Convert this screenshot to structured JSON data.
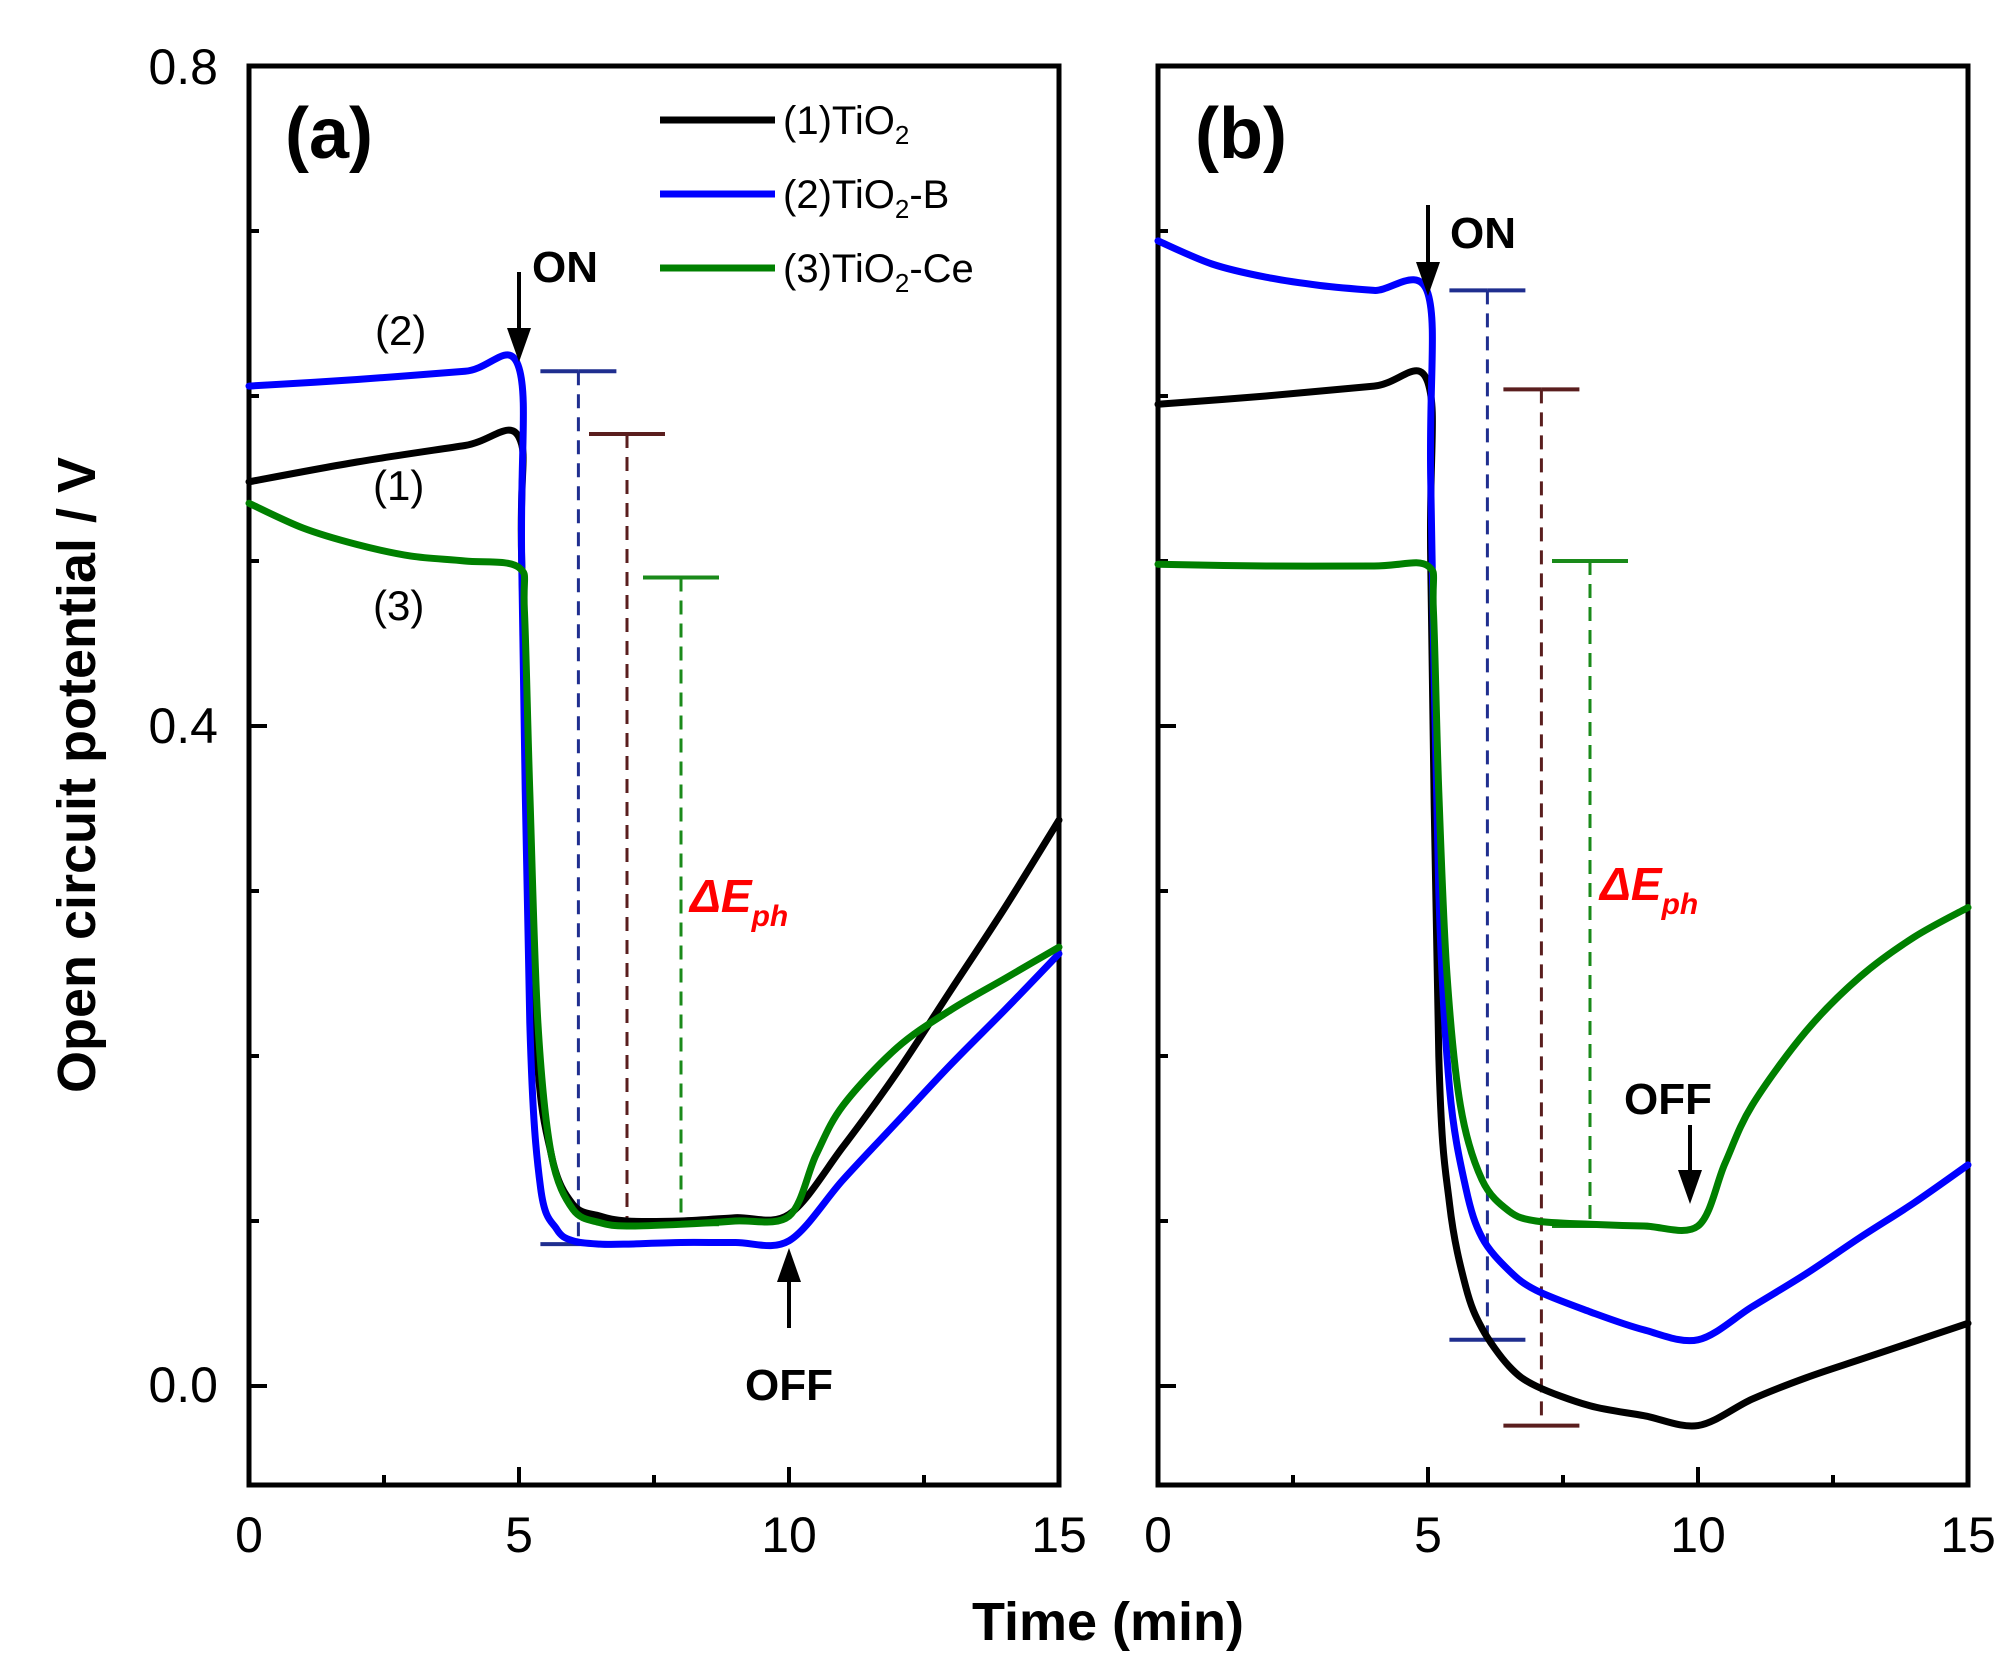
{
  "figure": {
    "ylabel": "Open circuit potential / V",
    "xlabel": "Time (min)"
  },
  "colors": {
    "tio2": "#000000",
    "tio2_b": "#0000ff",
    "tio2_ce": "#008000",
    "bar_brown": "#5a1e1e",
    "bar_blue": "#1f2e8f",
    "bar_green": "#1a8a1a",
    "delta_e": "#ff0000"
  },
  "legend": {
    "entries": [
      {
        "prefix": "(1)TiO",
        "sub": "2",
        "suffix": "",
        "color": "#000000"
      },
      {
        "prefix": "(2)TiO",
        "sub": "2",
        "suffix": "-B",
        "color": "#0000ff"
      },
      {
        "prefix": "(3)TiO",
        "sub": "2",
        "suffix": "-Ce",
        "color": "#008000"
      }
    ]
  },
  "panel_a": {
    "label": "(a)",
    "on_label": "ON",
    "off_label": "OFF",
    "curve_labels": {
      "c1": "(1)",
      "c2": "(2)",
      "c3": "(3)"
    },
    "delta_e": {
      "main": "ΔE",
      "sub": "ph"
    }
  },
  "panel_b": {
    "label": "(b)",
    "on_label": "ON",
    "off_label": "OFF",
    "delta_e": {
      "main": "ΔE",
      "sub": "ph"
    }
  },
  "chart_data": [
    {
      "type": "line",
      "panel": "a",
      "xlabel": "Time (min)",
      "ylabel": "Open circuit potential / V",
      "xlim": [
        0,
        15
      ],
      "ylim": [
        -0.06,
        0.8
      ],
      "xticks": [
        0,
        5,
        10,
        15
      ],
      "xtick_labels": [
        "0",
        "5",
        "10",
        "15"
      ],
      "yticks": [
        0.0,
        0.4,
        0.8
      ],
      "ytick_labels": [
        "0.0",
        "0.4",
        "0.8"
      ],
      "series": [
        {
          "name": "(1)TiO2",
          "key": "tio2",
          "x": [
            0,
            2,
            4,
            5,
            5.05,
            5.3,
            5.6,
            6.0,
            6.5,
            7,
            8,
            9,
            10,
            11,
            12,
            13,
            14,
            15
          ],
          "y": [
            0.548,
            0.56,
            0.57,
            0.575,
            0.5,
            0.22,
            0.14,
            0.11,
            0.103,
            0.1,
            0.1,
            0.102,
            0.104,
            0.145,
            0.19,
            0.24,
            0.29,
            0.343
          ]
        },
        {
          "name": "(2)TiO2-B",
          "key": "tio2_b",
          "x": [
            0,
            2,
            4,
            5,
            5.05,
            5.2,
            5.4,
            5.7,
            6.0,
            6.5,
            7,
            8,
            9,
            10,
            11,
            12,
            13,
            14,
            15
          ],
          "y": [
            0.606,
            0.61,
            0.615,
            0.617,
            0.5,
            0.22,
            0.12,
            0.095,
            0.088,
            0.086,
            0.086,
            0.087,
            0.087,
            0.088,
            0.125,
            0.16,
            0.195,
            0.228,
            0.262
          ]
        },
        {
          "name": "(3)TiO2-Ce",
          "key": "tio2_ce",
          "x": [
            0,
            1,
            2,
            3,
            4,
            5,
            5.1,
            5.2,
            5.35,
            5.6,
            6.0,
            6.5,
            7,
            8,
            9,
            10,
            10.5,
            11,
            12,
            13,
            14,
            15
          ],
          "y": [
            0.535,
            0.52,
            0.51,
            0.503,
            0.5,
            0.496,
            0.47,
            0.36,
            0.22,
            0.14,
            0.107,
            0.099,
            0.097,
            0.098,
            0.1,
            0.103,
            0.14,
            0.17,
            0.205,
            0.228,
            0.247,
            0.266
          ]
        }
      ],
      "delta_bars": [
        {
          "key": "bar_blue",
          "x": 6.1,
          "y_top": 0.615,
          "y_bottom": 0.086
        },
        {
          "key": "bar_brown",
          "x": 7.0,
          "y_top": 0.577,
          "y_bottom": 0.1
        },
        {
          "key": "bar_green",
          "x": 8.0,
          "y_top": 0.49,
          "y_bottom": 0.098
        }
      ],
      "annotations": [
        "ON at 5 min (down arrow)",
        "OFF at 10 min (up arrow)",
        "ΔEph"
      ]
    },
    {
      "type": "line",
      "panel": "b",
      "xlabel": "Time (min)",
      "xlim": [
        0,
        15
      ],
      "ylim": [
        -0.06,
        0.8
      ],
      "xticks": [
        0,
        5,
        10,
        15
      ],
      "xtick_labels": [
        "0",
        "5",
        "10",
        "15"
      ],
      "yticks": [
        0.0,
        0.1,
        0.2,
        0.3,
        0.4,
        0.5,
        0.6,
        0.7,
        0.8
      ],
      "series": [
        {
          "name": "(1)TiO2",
          "key": "tio2",
          "x": [
            0,
            2,
            4,
            5,
            5.05,
            5.2,
            5.4,
            5.7,
            6.0,
            6.5,
            7,
            8,
            9,
            10,
            11,
            12,
            13,
            14,
            15
          ],
          "y": [
            0.595,
            0.6,
            0.606,
            0.608,
            0.5,
            0.2,
            0.11,
            0.06,
            0.035,
            0.012,
            0.0,
            -0.012,
            -0.018,
            -0.024,
            -0.008,
            0.005,
            0.016,
            0.027,
            0.038
          ]
        },
        {
          "name": "(2)TiO2-B",
          "key": "tio2_b",
          "x": [
            0,
            1,
            2,
            3,
            4,
            5,
            5.05,
            5.2,
            5.4,
            5.7,
            6.0,
            6.5,
            7,
            8,
            9,
            10,
            11,
            12,
            13,
            14,
            15
          ],
          "y": [
            0.694,
            0.68,
            0.672,
            0.667,
            0.664,
            0.662,
            0.55,
            0.3,
            0.18,
            0.12,
            0.09,
            0.07,
            0.058,
            0.045,
            0.034,
            0.028,
            0.048,
            0.068,
            0.09,
            0.111,
            0.134
          ]
        },
        {
          "name": "(3)TiO2-Ce",
          "key": "tio2_ce",
          "x": [
            0,
            2,
            4,
            5,
            5.1,
            5.2,
            5.35,
            5.6,
            6.0,
            6.5,
            7,
            8,
            9,
            10,
            10.5,
            11,
            12,
            13,
            14,
            15
          ],
          "y": [
            0.498,
            0.497,
            0.497,
            0.497,
            0.47,
            0.36,
            0.25,
            0.17,
            0.125,
            0.106,
            0.1,
            0.098,
            0.097,
            0.097,
            0.135,
            0.17,
            0.215,
            0.248,
            0.272,
            0.29
          ]
        }
      ],
      "delta_bars": [
        {
          "key": "bar_blue",
          "x": 6.1,
          "y_top": 0.664,
          "y_bottom": 0.028
        },
        {
          "key": "bar_brown",
          "x": 7.1,
          "y_top": 0.604,
          "y_bottom": -0.024
        },
        {
          "key": "bar_green",
          "x": 8.0,
          "y_top": 0.5,
          "y_bottom": 0.097
        }
      ],
      "annotations": [
        "ON at 5 min (down arrow)",
        "OFF at 10 min (down arrow)",
        "ΔEph"
      ]
    }
  ]
}
